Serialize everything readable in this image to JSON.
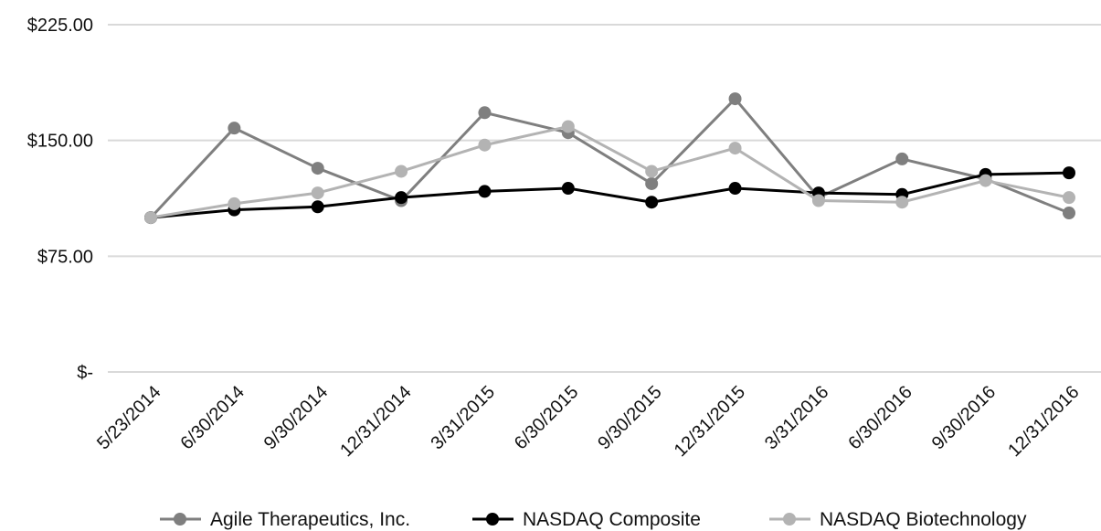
{
  "chart_data": {
    "type": "line",
    "title": "",
    "xlabel": "",
    "ylabel": "",
    "categories": [
      "5/23/2014",
      "6/30/2014",
      "9/30/2014",
      "12/31/2014",
      "3/31/2015",
      "6/30/2015",
      "9/30/2015",
      "12/31/2015",
      "3/31/2016",
      "6/30/2016",
      "9/30/2016",
      "12/31/2016"
    ],
    "y_ticks": [
      {
        "value": 0,
        "label": "$-"
      },
      {
        "value": 75,
        "label": "$75.00"
      },
      {
        "value": 150,
        "label": "$150.00"
      },
      {
        "value": 225,
        "label": "$225.00"
      }
    ],
    "ylim": [
      0,
      225
    ],
    "grid": true,
    "legend_position": "bottom",
    "series": [
      {
        "name": "Agile Therapeutics, Inc.",
        "color": "#7f7f7f",
        "values": [
          100,
          158,
          132,
          111,
          168,
          155,
          122,
          177,
          113,
          138,
          125,
          103
        ]
      },
      {
        "name": "NASDAQ Composite",
        "color": "#000000",
        "values": [
          100,
          105,
          107,
          113,
          117,
          119,
          110,
          119,
          116,
          115,
          128,
          129
        ]
      },
      {
        "name": "NASDAQ Biotechnology",
        "color": "#b3b3b3",
        "values": [
          100,
          109,
          116,
          130,
          147,
          159,
          130,
          145,
          111,
          110,
          124,
          113
        ]
      }
    ]
  }
}
